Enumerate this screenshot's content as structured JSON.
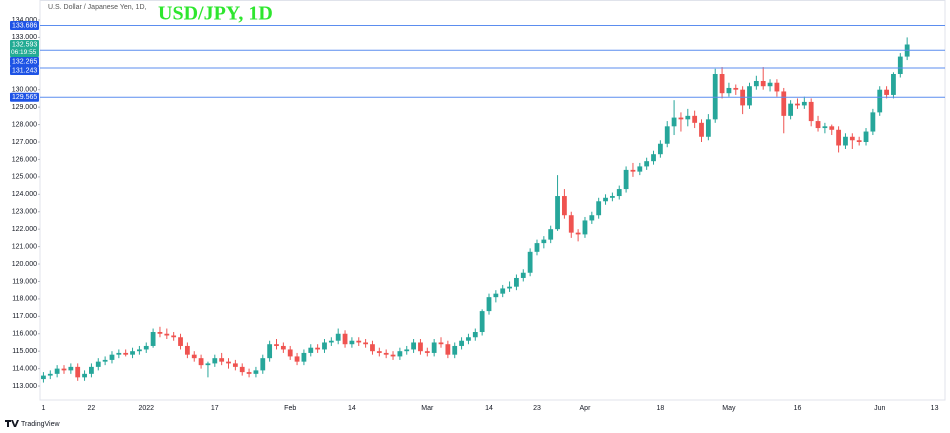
{
  "chart_data": {
    "type": "candlestick",
    "subtitle": "U.S. Dollar / Japanese Yen, 1D,",
    "title": "USD/JPY, 1D",
    "logo": "TradingView",
    "up_color": "#26a69a",
    "down_color": "#ef5350",
    "ylim": [
      112.2,
      134.4
    ],
    "yticks": [
      {
        "value": 113,
        "label": "113.000"
      },
      {
        "value": 114,
        "label": "114.000"
      },
      {
        "value": 115,
        "label": "115.000"
      },
      {
        "value": 116,
        "label": "116.000"
      },
      {
        "value": 117,
        "label": "117.000"
      },
      {
        "value": 118,
        "label": "118.000"
      },
      {
        "value": 119,
        "label": "119.000"
      },
      {
        "value": 120,
        "label": "120.000"
      },
      {
        "value": 121,
        "label": "121.000"
      },
      {
        "value": 122,
        "label": "122.000"
      },
      {
        "value": 123,
        "label": "123.000"
      },
      {
        "value": 124,
        "label": "124.000"
      },
      {
        "value": 125,
        "label": "125.000"
      },
      {
        "value": 126,
        "label": "126.000"
      },
      {
        "value": 127,
        "label": "127.000"
      },
      {
        "value": 128,
        "label": "128.000"
      },
      {
        "value": 129,
        "label": "129.000"
      },
      {
        "value": 130,
        "label": "130.000"
      },
      {
        "value": 133,
        "label": "133.000"
      },
      {
        "value": 134,
        "label": "134.000"
      }
    ],
    "levels": [
      {
        "value": 133.686,
        "label": "133.686"
      },
      {
        "value": 132.265,
        "label": "132.265"
      },
      {
        "value": 131.243,
        "label": "131.243"
      },
      {
        "value": 129.565,
        "label": "129.565"
      }
    ],
    "level_color": "#5b8def",
    "price_label": {
      "value": 132.593,
      "label": "132.593",
      "timer": "06:19:55"
    },
    "categories": [
      "1",
      null,
      null,
      null,
      null,
      null,
      null,
      "22",
      null,
      null,
      null,
      null,
      null,
      null,
      null,
      "2022",
      null,
      null,
      null,
      null,
      null,
      null,
      null,
      null,
      null,
      "17",
      null,
      null,
      null,
      null,
      null,
      null,
      null,
      null,
      null,
      null,
      "Feb",
      null,
      null,
      null,
      null,
      null,
      null,
      null,
      null,
      "14",
      null,
      null,
      null,
      null,
      null,
      null,
      null,
      null,
      null,
      null,
      "Mar",
      null,
      null,
      null,
      null,
      null,
      null,
      null,
      null,
      "14",
      null,
      null,
      null,
      null,
      null,
      null,
      "23",
      null,
      null,
      null,
      null,
      null,
      null,
      "Apr",
      null,
      null,
      null,
      null,
      null,
      null,
      null,
      null,
      null,
      null,
      "18",
      null,
      null,
      null,
      null,
      null,
      null,
      null,
      null,
      null,
      "May",
      null,
      null,
      null,
      null,
      null,
      null,
      null,
      null,
      null,
      "16",
      null,
      null,
      null,
      null,
      null,
      null,
      null,
      null,
      null,
      null,
      null,
      "Jun",
      null,
      null,
      null,
      null,
      null,
      null,
      null,
      "13"
    ],
    "candles": [
      [
        113.4,
        113.8,
        113.2,
        113.6
      ],
      [
        113.6,
        113.9,
        113.4,
        113.7
      ],
      [
        113.7,
        114.2,
        113.5,
        114.0
      ],
      [
        114.0,
        114.2,
        113.7,
        113.9
      ],
      [
        113.9,
        114.3,
        113.7,
        114.1
      ],
      [
        114.1,
        114.3,
        113.3,
        113.5
      ],
      [
        113.5,
        113.9,
        113.3,
        113.7
      ],
      [
        113.7,
        114.3,
        113.5,
        114.1
      ],
      [
        114.1,
        114.6,
        113.9,
        114.4
      ],
      [
        114.4,
        114.7,
        114.2,
        114.5
      ],
      [
        114.5,
        115.0,
        114.3,
        114.8
      ],
      [
        114.8,
        115.1,
        114.6,
        114.9
      ],
      [
        114.9,
        115.1,
        114.7,
        114.8
      ],
      [
        114.8,
        115.2,
        114.6,
        115.0
      ],
      [
        115.0,
        115.3,
        114.8,
        115.1
      ],
      [
        115.1,
        115.5,
        114.9,
        115.3
      ],
      [
        115.3,
        116.3,
        115.2,
        116.1
      ],
      [
        116.1,
        116.4,
        115.8,
        116.0
      ],
      [
        116.0,
        116.3,
        115.7,
        115.9
      ],
      [
        115.9,
        116.1,
        115.6,
        115.8
      ],
      [
        115.8,
        116.0,
        115.1,
        115.3
      ],
      [
        115.3,
        115.5,
        114.6,
        114.8
      ],
      [
        114.8,
        115.0,
        114.4,
        114.6
      ],
      [
        114.6,
        114.8,
        114.0,
        114.2
      ],
      [
        114.2,
        114.4,
        113.5,
        114.3
      ],
      [
        114.3,
        114.8,
        114.1,
        114.6
      ],
      [
        114.6,
        114.9,
        114.2,
        114.4
      ],
      [
        114.4,
        114.6,
        114.0,
        114.3
      ],
      [
        114.3,
        114.5,
        113.9,
        114.1
      ],
      [
        114.1,
        114.3,
        113.6,
        113.8
      ],
      [
        113.8,
        114.0,
        113.5,
        113.7
      ],
      [
        113.7,
        114.1,
        113.5,
        113.9
      ],
      [
        113.9,
        114.8,
        113.7,
        114.6
      ],
      [
        114.6,
        115.6,
        114.4,
        115.4
      ],
      [
        115.4,
        115.7,
        115.1,
        115.3
      ],
      [
        115.3,
        115.5,
        114.9,
        115.1
      ],
      [
        115.1,
        115.3,
        114.5,
        114.7
      ],
      [
        114.7,
        114.9,
        114.2,
        114.4
      ],
      [
        114.4,
        115.1,
        114.2,
        114.9
      ],
      [
        114.9,
        115.4,
        114.7,
        115.2
      ],
      [
        115.2,
        115.4,
        114.9,
        115.1
      ],
      [
        115.1,
        115.7,
        114.9,
        115.5
      ],
      [
        115.5,
        115.8,
        115.3,
        115.6
      ],
      [
        115.6,
        116.3,
        115.4,
        116.0
      ],
      [
        116.0,
        116.2,
        115.2,
        115.4
      ],
      [
        115.4,
        115.8,
        115.2,
        115.6
      ],
      [
        115.6,
        115.8,
        115.3,
        115.5
      ],
      [
        115.5,
        115.7,
        115.2,
        115.4
      ],
      [
        115.4,
        115.6,
        114.8,
        115.0
      ],
      [
        115.0,
        115.2,
        114.7,
        114.9
      ],
      [
        114.9,
        115.1,
        114.6,
        114.8
      ],
      [
        114.8,
        115.0,
        114.5,
        114.7
      ],
      [
        114.7,
        115.2,
        114.5,
        115.0
      ],
      [
        115.0,
        115.3,
        114.8,
        115.1
      ],
      [
        115.1,
        115.7,
        114.9,
        115.5
      ],
      [
        115.5,
        115.7,
        114.8,
        115.0
      ],
      [
        115.0,
        115.2,
        114.7,
        114.9
      ],
      [
        114.9,
        115.7,
        114.7,
        115.5
      ],
      [
        115.5,
        115.8,
        115.2,
        115.4
      ],
      [
        115.4,
        115.6,
        114.6,
        114.8
      ],
      [
        114.8,
        115.5,
        114.6,
        115.3
      ],
      [
        115.3,
        115.8,
        115.1,
        115.6
      ],
      [
        115.6,
        116.0,
        115.4,
        115.8
      ],
      [
        115.8,
        116.3,
        115.6,
        116.1
      ],
      [
        116.1,
        117.4,
        115.9,
        117.3
      ],
      [
        117.3,
        118.3,
        117.1,
        118.1
      ],
      [
        118.1,
        118.5,
        117.8,
        118.3
      ],
      [
        118.3,
        118.8,
        118.1,
        118.6
      ],
      [
        118.6,
        119.0,
        118.4,
        118.7
      ],
      [
        118.7,
        119.4,
        118.5,
        119.2
      ],
      [
        119.2,
        119.7,
        119.0,
        119.5
      ],
      [
        119.5,
        120.9,
        119.3,
        120.7
      ],
      [
        120.7,
        121.4,
        120.5,
        121.2
      ],
      [
        121.2,
        121.6,
        120.9,
        121.4
      ],
      [
        121.4,
        122.2,
        121.2,
        122.0
      ],
      [
        122.0,
        125.1,
        121.9,
        123.9
      ],
      [
        123.9,
        124.3,
        122.6,
        122.8
      ],
      [
        122.8,
        123.0,
        121.5,
        121.8
      ],
      [
        121.8,
        122.0,
        121.3,
        121.7
      ],
      [
        121.7,
        122.7,
        121.5,
        122.5
      ],
      [
        122.5,
        123.0,
        122.3,
        122.8
      ],
      [
        122.8,
        123.8,
        122.6,
        123.6
      ],
      [
        123.6,
        124.0,
        123.4,
        123.8
      ],
      [
        123.8,
        124.1,
        123.6,
        123.9
      ],
      [
        123.9,
        124.5,
        123.7,
        124.3
      ],
      [
        124.3,
        125.6,
        124.1,
        125.4
      ],
      [
        125.4,
        125.8,
        125.0,
        125.3
      ],
      [
        125.3,
        125.8,
        125.1,
        125.6
      ],
      [
        125.6,
        126.1,
        125.4,
        125.9
      ],
      [
        125.9,
        126.5,
        125.7,
        126.3
      ],
      [
        126.3,
        127.1,
        126.1,
        126.9
      ],
      [
        126.9,
        128.2,
        126.7,
        127.9
      ],
      [
        127.9,
        129.4,
        127.4,
        128.4
      ],
      [
        128.4,
        128.7,
        127.6,
        128.3
      ],
      [
        128.3,
        128.9,
        127.9,
        128.5
      ],
      [
        128.5,
        128.8,
        127.8,
        128.1
      ],
      [
        128.1,
        128.3,
        127.0,
        127.3
      ],
      [
        127.3,
        128.6,
        127.1,
        128.3
      ],
      [
        128.3,
        131.2,
        128.1,
        130.9
      ],
      [
        130.9,
        131.3,
        129.5,
        129.8
      ],
      [
        129.8,
        130.4,
        129.6,
        130.1
      ],
      [
        130.1,
        130.3,
        129.7,
        130.0
      ],
      [
        130.0,
        130.2,
        128.6,
        129.1
      ],
      [
        129.1,
        130.4,
        128.9,
        130.2
      ],
      [
        130.2,
        130.8,
        130.0,
        130.5
      ],
      [
        130.5,
        131.3,
        130.0,
        130.2
      ],
      [
        130.2,
        130.6,
        129.9,
        130.4
      ],
      [
        130.4,
        130.6,
        129.6,
        129.9
      ],
      [
        129.9,
        130.1,
        127.5,
        128.5
      ],
      [
        128.5,
        129.4,
        128.3,
        129.2
      ],
      [
        129.2,
        129.5,
        128.9,
        129.1
      ],
      [
        129.1,
        129.6,
        128.9,
        129.3
      ],
      [
        129.3,
        129.5,
        127.9,
        128.2
      ],
      [
        128.2,
        128.5,
        127.6,
        127.8
      ],
      [
        127.8,
        128.1,
        127.5,
        127.9
      ],
      [
        127.9,
        128.0,
        127.4,
        127.7
      ],
      [
        127.7,
        127.9,
        126.4,
        126.8
      ],
      [
        126.8,
        127.5,
        126.6,
        127.3
      ],
      [
        127.3,
        127.5,
        126.6,
        127.1
      ],
      [
        127.1,
        127.3,
        126.8,
        127.0
      ],
      [
        127.0,
        127.8,
        126.8,
        127.6
      ],
      [
        127.6,
        128.9,
        127.4,
        128.7
      ],
      [
        128.7,
        130.2,
        128.5,
        130.0
      ],
      [
        130.0,
        130.2,
        129.5,
        129.7
      ],
      [
        129.7,
        131.0,
        129.5,
        130.9
      ],
      [
        130.9,
        132.1,
        130.7,
        131.9
      ],
      [
        131.9,
        133.0,
        131.7,
        132.593
      ],
      null,
      null,
      null,
      null
    ]
  }
}
